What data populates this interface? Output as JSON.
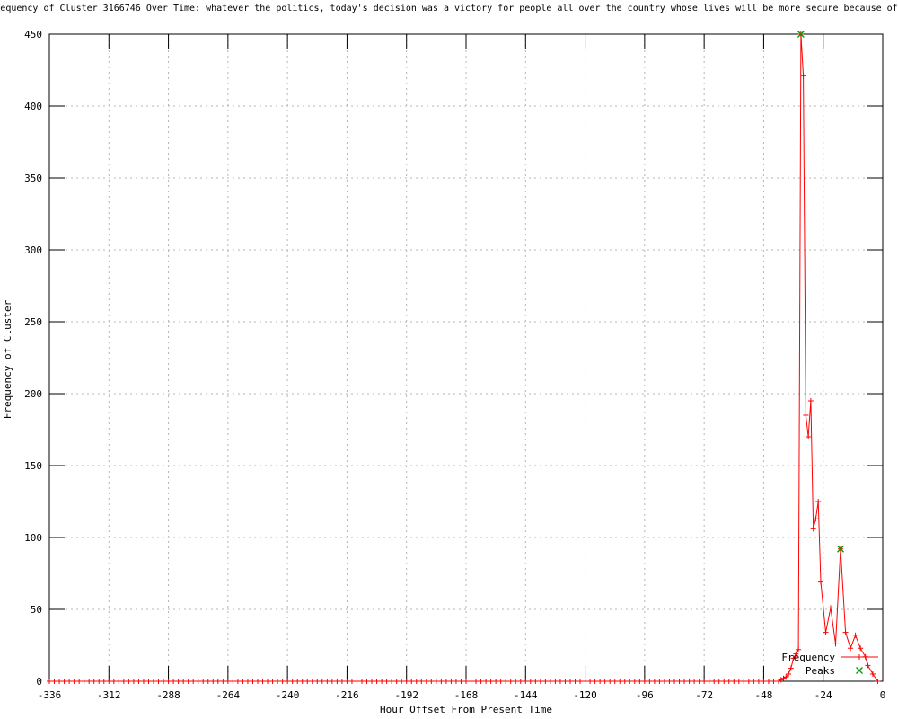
{
  "title": "equency of Cluster 3166746 Over Time: whatever the politics, today's decision was a victory for people all over the country whose lives will be more secure because of",
  "colors": {
    "frequency_line": "#ff0000",
    "peaks_marker": "#009e00",
    "grid": "#b4b4b4",
    "axis": "#000000",
    "background": "#ffffff"
  },
  "chart_data": {
    "type": "line",
    "title": "equency of Cluster 3166746 Over Time: whatever the politics, today's decision was a victory for people all over the country whose lives will be more secure because of",
    "xlabel": "Hour Offset From Present Time",
    "ylabel": "Frequency of Cluster",
    "xlim": [
      -336,
      0
    ],
    "ylim": [
      0,
      450
    ],
    "x_ticks": [
      -336,
      -312,
      -288,
      -264,
      -240,
      -216,
      -192,
      -168,
      -144,
      -120,
      -96,
      -72,
      -48,
      -24,
      0
    ],
    "y_ticks": [
      0,
      50,
      100,
      150,
      200,
      250,
      300,
      350,
      400,
      450
    ],
    "grid": true,
    "grid_style": "dotted",
    "legend_position": "inside-bottom-right",
    "series": [
      {
        "name": "Frequency",
        "color": "#ff0000",
        "marker": "plus",
        "zero_fill": {
          "from": -336,
          "to": -44,
          "step": 2,
          "value": 0
        },
        "points": [
          [
            -42,
            0
          ],
          [
            -41,
            1
          ],
          [
            -40,
            2
          ],
          [
            -39,
            3
          ],
          [
            -38,
            5
          ],
          [
            -37,
            9
          ],
          [
            -36,
            16
          ],
          [
            -35,
            19
          ],
          [
            -34,
            22
          ],
          [
            -33,
            450
          ],
          [
            -32,
            421
          ],
          [
            -31,
            185
          ],
          [
            -30,
            170
          ],
          [
            -29,
            195
          ],
          [
            -28,
            106
          ],
          [
            -27,
            113
          ],
          [
            -26,
            125
          ],
          [
            -25,
            69
          ],
          [
            -23,
            34
          ],
          [
            -21,
            51
          ],
          [
            -19,
            26
          ],
          [
            -17,
            92
          ],
          [
            -15,
            34
          ],
          [
            -13,
            23
          ],
          [
            -11,
            32
          ],
          [
            -9,
            23
          ],
          [
            -7,
            17
          ],
          [
            -6,
            11
          ],
          [
            -4,
            5
          ],
          [
            -2,
            0
          ]
        ]
      },
      {
        "name": "Peaks",
        "color": "#009e00",
        "marker": "cross",
        "points": [
          [
            -33,
            450
          ],
          [
            -17,
            92
          ]
        ]
      }
    ]
  }
}
